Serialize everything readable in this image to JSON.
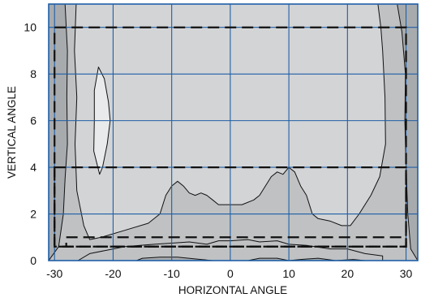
{
  "chart_data": {
    "type": "contour",
    "title": "",
    "xlabel": "HORIZONTAL ANGLE",
    "ylabel": "VERTICAL ANGLE",
    "xlim": [
      -31,
      32
    ],
    "ylim": [
      0,
      11
    ],
    "x_ticks": [
      -30,
      -20,
      -10,
      0,
      10,
      20,
      30
    ],
    "y_ticks": [
      0,
      2,
      4,
      6,
      8,
      10
    ],
    "grid": true,
    "colors": {
      "outer_band": "#a8abae",
      "middle_band": "#bfc1c3",
      "inner_band": "#d3d4d6",
      "peak_region": "#e9eaeb",
      "contour_line": "#111111",
      "grid_line": "#1f5fa6",
      "dashed_boxes": "#111111"
    },
    "regions": [
      {
        "level": "middle_band",
        "points": [
          [
            -28.2,
            11
          ],
          [
            -27.8,
            9
          ],
          [
            -27.9,
            7
          ],
          [
            -27.8,
            5
          ],
          [
            -28.2,
            3.5
          ],
          [
            -28.5,
            2
          ],
          [
            -29.3,
            0.6
          ],
          [
            -31,
            0
          ],
          [
            32,
            0
          ],
          [
            30.8,
            0.5
          ],
          [
            30.3,
            2
          ],
          [
            30,
            4
          ],
          [
            29.8,
            6
          ],
          [
            29.9,
            8
          ],
          [
            29.3,
            9.8
          ],
          [
            28.5,
            11
          ]
        ]
      },
      {
        "level": "inner_band",
        "points": [
          [
            -26.3,
            11
          ],
          [
            -26.6,
            9
          ],
          [
            -26.2,
            7
          ],
          [
            -26.5,
            5
          ],
          [
            -26.2,
            3
          ],
          [
            -25,
            1.5
          ],
          [
            -24,
            0.9
          ],
          [
            -22,
            1
          ],
          [
            -18,
            1.3
          ],
          [
            -14,
            1.6
          ],
          [
            -12,
            2
          ],
          [
            -11,
            2.8
          ],
          [
            -10,
            3.2
          ],
          [
            -9,
            3.4
          ],
          [
            -8,
            3.2
          ],
          [
            -7,
            2.9
          ],
          [
            -6,
            2.8
          ],
          [
            -5,
            2.9
          ],
          [
            -4,
            2.8
          ],
          [
            -3,
            2.6
          ],
          [
            -2,
            2.4
          ],
          [
            0,
            2.4
          ],
          [
            1,
            2.4
          ],
          [
            2,
            2.4
          ],
          [
            4,
            2.6
          ],
          [
            5,
            2.8
          ],
          [
            6,
            3.2
          ],
          [
            7,
            3.6
          ],
          [
            8,
            3.8
          ],
          [
            9,
            3.7
          ],
          [
            10,
            4
          ],
          [
            11,
            3.8
          ],
          [
            12,
            3.2
          ],
          [
            13,
            2.8
          ],
          [
            14,
            2
          ],
          [
            15,
            1.8
          ],
          [
            17,
            1.7
          ],
          [
            19,
            1.5
          ],
          [
            20.5,
            1.5
          ],
          [
            22,
            2
          ],
          [
            24,
            2.8
          ],
          [
            25.5,
            3.6
          ],
          [
            26.5,
            5
          ],
          [
            26.4,
            7
          ],
          [
            26,
            9
          ],
          [
            25.7,
            10
          ],
          [
            25.2,
            11
          ]
        ]
      },
      {
        "level": "peak_region",
        "points": [
          [
            -22.5,
            8.3
          ],
          [
            -21.5,
            7.8
          ],
          [
            -20.8,
            6.8
          ],
          [
            -20.5,
            6
          ],
          [
            -21,
            5
          ],
          [
            -21.8,
            4
          ],
          [
            -22.3,
            3.7
          ],
          [
            -23.3,
            4.7
          ],
          [
            -23.2,
            6
          ],
          [
            -23.2,
            7.3
          ]
        ]
      },
      {
        "level": "middle_band",
        "points": [
          [
            -26,
            0
          ],
          [
            -24,
            0.3
          ],
          [
            -21,
            0.45
          ],
          [
            -18,
            0.6
          ],
          [
            -13,
            0.7
          ],
          [
            -10,
            0.75
          ],
          [
            -7,
            0.8
          ],
          [
            -4,
            0.7
          ],
          [
            -2,
            0.85
          ],
          [
            0,
            0.85
          ],
          [
            3,
            0.9
          ],
          [
            5,
            0.8
          ],
          [
            8,
            0.85
          ],
          [
            10,
            0.7
          ],
          [
            13,
            0.65
          ],
          [
            17,
            0.5
          ],
          [
            20,
            0.5
          ],
          [
            23,
            0.3
          ],
          [
            26,
            0.2
          ],
          [
            26,
            0
          ]
        ]
      },
      {
        "level": "outer_band",
        "points": [
          [
            -16,
            0
          ],
          [
            -15,
            0.1
          ],
          [
            -12,
            0.15
          ],
          [
            -9,
            0.15
          ],
          [
            -5,
            0.05
          ],
          [
            -3,
            0
          ],
          [
            3,
            0
          ],
          [
            5,
            0.1
          ],
          [
            8,
            0.1
          ],
          [
            10,
            0
          ],
          [
            12,
            0.05
          ],
          [
            15,
            0.1
          ],
          [
            18,
            0
          ],
          [
            21,
            0.05
          ],
          [
            23,
            0
          ]
        ]
      }
    ],
    "dashed_rectangles": [
      {
        "x": [
          -30,
          30
        ],
        "y": [
          0.6,
          10
        ]
      },
      {
        "x": [
          -30,
          30
        ],
        "y": [
          0.6,
          4
        ]
      },
      {
        "x": [
          -28,
          30
        ],
        "y": [
          0.6,
          1
        ]
      }
    ]
  }
}
